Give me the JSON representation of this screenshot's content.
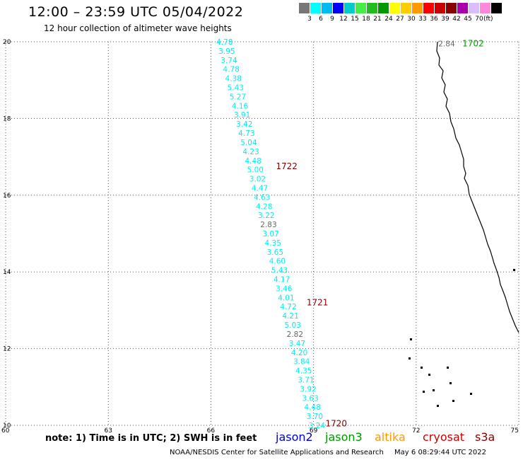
{
  "header": {
    "title": "12:00 – 23:59 UTC 05/04/2022",
    "subtitle": "12 hour collection of altimeter wave heights"
  },
  "colorbar": {
    "colors": [
      "#777777",
      "#00ffff",
      "#00bbee",
      "#0000ff",
      "#00cccc",
      "#44ee44",
      "#22bb22",
      "#009900",
      "#ffff00",
      "#ffcc00",
      "#ff9900",
      "#ff0000",
      "#cc0000",
      "#880000",
      "#aa00aa",
      "#ddbbff",
      "#ff88dd",
      "#000000"
    ],
    "ticks": [
      "3",
      "6",
      "9",
      "12",
      "15",
      "18",
      "21",
      "24",
      "27",
      "30",
      "33",
      "36",
      "39",
      "42",
      "45",
      "70"
    ],
    "unit": "(ft)"
  },
  "axes": {
    "x_ticks": [
      "60",
      "63",
      "66",
      "69",
      "72",
      "75"
    ],
    "y_ticks": [
      "20",
      "18",
      "16",
      "14",
      "12",
      "10"
    ],
    "x_range": [
      60,
      75
    ],
    "y_range": [
      10,
      20
    ]
  },
  "track": {
    "start": [
      66.4,
      20.0
    ],
    "end": [
      69.1,
      10.0
    ],
    "values": [
      "4.78",
      "3.95",
      "3.74",
      "4.78",
      "4.38",
      "5.43",
      "5.27",
      "4.16",
      "3.91",
      "3.42",
      "4.73",
      "5.04",
      "4.23",
      "4.48",
      "5.00",
      "3.02",
      "4.47",
      "4.63",
      "4.28",
      "3.22",
      "2.83",
      "3.07",
      "4.35",
      "3.65",
      "4.60",
      "5.43",
      "4.17",
      "3.46",
      "4.01",
      "4.72",
      "4.21",
      "5.03",
      "2.82",
      "3.47",
      "4.20",
      "3.84",
      "4.35",
      "3.71",
      "3.92",
      "3.63",
      "4.48",
      "3.70",
      "3.24"
    ],
    "value_colors": [
      "#00eeee",
      "#00eeee",
      "#00eeee",
      "#00eeee",
      "#00eeee",
      "#00eeee",
      "#00eeee",
      "#00eeee",
      "#00eeee",
      "#00eeee",
      "#00eeee",
      "#00eeee",
      "#00eeee",
      "#00eeee",
      "#00eeee",
      "#00eeee",
      "#00eeee",
      "#00eeee",
      "#00eeee",
      "#00eeee",
      "#666666",
      "#00eeee",
      "#00eeee",
      "#00eeee",
      "#00eeee",
      "#00eeee",
      "#00eeee",
      "#00eeee",
      "#00eeee",
      "#00eeee",
      "#00eeee",
      "#00eeee",
      "#666666",
      "#00eeee",
      "#00eeee",
      "#00eeee",
      "#00eeee",
      "#00eeee",
      "#00eeee",
      "#00eeee",
      "#00eeee",
      "#00eeee",
      "#00eeee"
    ],
    "time_labels": [
      {
        "text": "1722",
        "lon": 67.9,
        "lat": 16.75,
        "color": "#880000"
      },
      {
        "text": "1721",
        "lon": 68.8,
        "lat": 13.2,
        "color": "#880000"
      },
      {
        "text": "1720",
        "lon": 69.35,
        "lat": 10.05,
        "color": "#880000"
      }
    ]
  },
  "track2": {
    "value": "2.84",
    "value_color": "#666666",
    "value_lon": 72.65,
    "value_lat": 19.95,
    "time": "1702",
    "time_color": "#009900",
    "time_lon": 73.35,
    "time_lat": 19.95
  },
  "notes": {
    "note": "note:  1) Time is in UTC;  2) SWH is in feet"
  },
  "satellites": [
    {
      "name": "jason2",
      "color": "#0000cc"
    },
    {
      "name": "jason3",
      "color": "#009900"
    },
    {
      "name": "altika",
      "color": "#ff9900"
    },
    {
      "name": "cryosat",
      "color": "#cc0000"
    },
    {
      "name": "s3a",
      "color": "#880000"
    }
  ],
  "footer": {
    "credit": "NOAA/NESDIS Center for Satellite Applications and Research",
    "generated": "May  6 08:29:44 UTC 2022"
  }
}
